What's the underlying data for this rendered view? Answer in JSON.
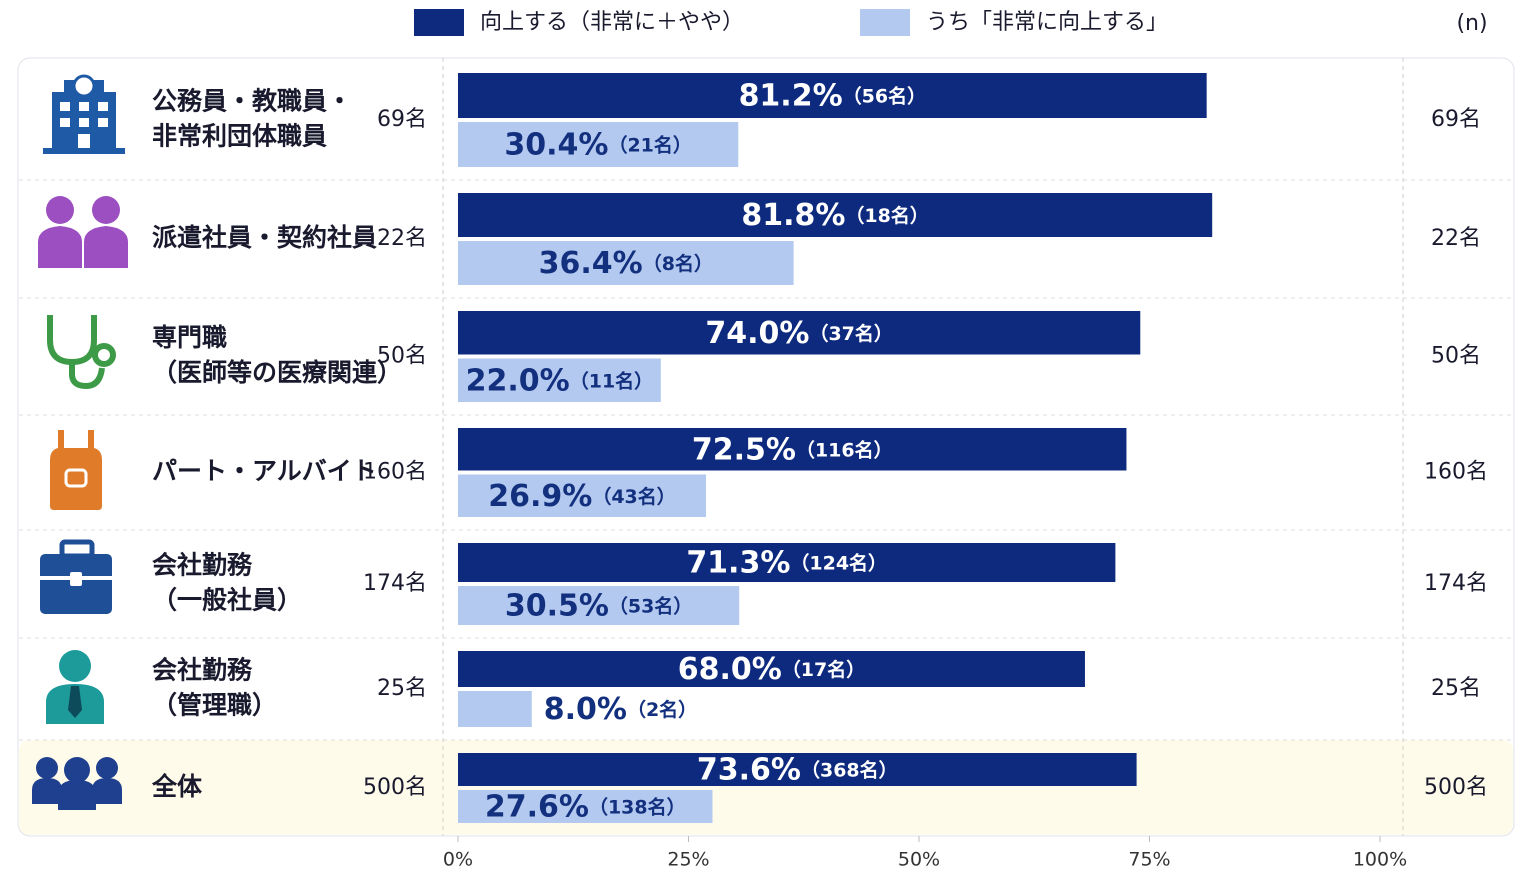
{
  "chart_data": {
    "type": "grouped-hbar",
    "n_header": "(n)",
    "categories": [
      [
        "公務員・教職員・",
        "非常利団体職員"
      ],
      [
        "派遣社員・契約社員"
      ],
      [
        "専門職",
        "（医師等の医療関連）"
      ],
      [
        "パート・アルバイト"
      ],
      [
        "会社勤務",
        "（一般社員）"
      ],
      [
        "会社勤務",
        "（管理職）"
      ],
      [
        "全体"
      ]
    ],
    "n_labels": [
      "69名",
      "22名",
      "50名",
      "160名",
      "174名",
      "25名",
      "500名"
    ],
    "series": [
      {
        "name": "向上する（非常に＋やや）",
        "color": "#0d2a7e",
        "values": [
          81.2,
          81.8,
          74.0,
          72.5,
          71.3,
          68.0,
          73.6
        ],
        "value_labels": [
          "81.2%",
          "81.8%",
          "74.0%",
          "72.5%",
          "71.3%",
          "68.0%",
          "73.6%"
        ],
        "count_labels": [
          "（56名）",
          "（18名）",
          "（37名）",
          "（116名）",
          "（124名）",
          "（17名）",
          "（368名）"
        ]
      },
      {
        "name": "うち「非常に向上する」",
        "color": "#b3c9ef",
        "values": [
          30.4,
          36.4,
          22.0,
          26.9,
          30.5,
          8.0,
          27.6
        ],
        "value_labels": [
          "30.4%",
          "36.4%",
          "22.0%",
          "26.9%",
          "30.5%",
          "8.0%",
          "27.6%"
        ],
        "count_labels": [
          "（21名）",
          "（8名）",
          "（11名）",
          "（43名）",
          "（53名）",
          "（2名）",
          "（138名）"
        ]
      }
    ],
    "xlim": [
      0,
      100
    ],
    "xticks": [
      {
        "value": 0,
        "label": "0%"
      },
      {
        "value": 25,
        "label": "25%"
      },
      {
        "value": 50,
        "label": "50%"
      },
      {
        "value": 75,
        "label": "75%"
      },
      {
        "value": 100,
        "label": "100%"
      }
    ]
  }
}
